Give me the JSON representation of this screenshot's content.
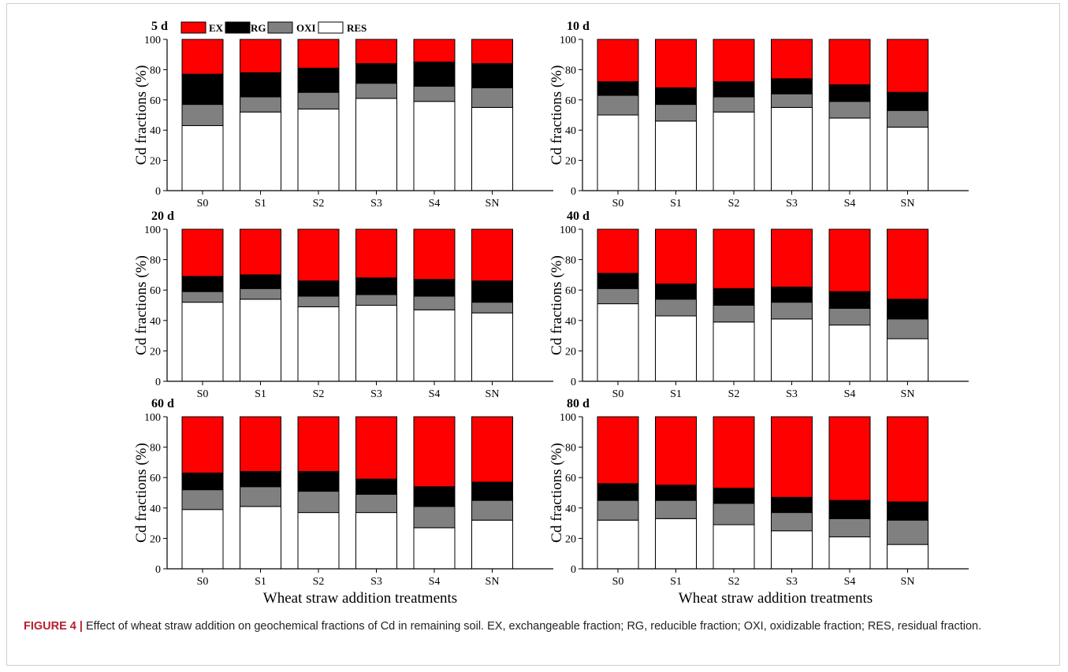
{
  "legend": [
    {
      "key": "EX",
      "color": "#ff0000"
    },
    {
      "key": "RG",
      "color": "#000000"
    },
    {
      "key": "OXI",
      "color": "#808080"
    },
    {
      "key": "RES",
      "color": "#ffffff"
    }
  ],
  "caption": {
    "label": "FIGURE 4 |",
    "text": "Effect of wheat straw addition on geochemical fractions of Cd in remaining soil. EX, exchangeable fraction; RG, reducible fraction; OXI, oxidizable fraction; RES, residual fraction."
  },
  "chart_data": [
    {
      "type": "bar",
      "stacked": true,
      "title": "5 d",
      "xlabel": "",
      "ylabel": "Cd fractions (%)",
      "ylim": [
        0,
        100
      ],
      "yticks": [
        0,
        20,
        40,
        60,
        80,
        100
      ],
      "categories": [
        "S0",
        "S1",
        "S2",
        "S3",
        "S4",
        "SN"
      ],
      "series": [
        {
          "name": "RES",
          "values": [
            43,
            52,
            54,
            61,
            59,
            55
          ]
        },
        {
          "name": "OXI",
          "values": [
            14,
            10,
            11,
            10,
            10,
            13
          ]
        },
        {
          "name": "RG",
          "values": [
            20,
            16,
            16,
            13,
            16,
            16
          ]
        },
        {
          "name": "EX",
          "values": [
            23,
            22,
            19,
            16,
            15,
            16
          ]
        }
      ]
    },
    {
      "type": "bar",
      "stacked": true,
      "title": "10 d",
      "xlabel": "",
      "ylabel": "Cd fractions (%)",
      "ylim": [
        0,
        100
      ],
      "yticks": [
        0,
        20,
        40,
        60,
        80,
        100
      ],
      "categories": [
        "S0",
        "S1",
        "S2",
        "S3",
        "S4",
        "SN"
      ],
      "series": [
        {
          "name": "RES",
          "values": [
            50,
            46,
            52,
            55,
            48,
            42
          ]
        },
        {
          "name": "OXI",
          "values": [
            13,
            11,
            10,
            9,
            11,
            11
          ]
        },
        {
          "name": "RG",
          "values": [
            9,
            11,
            10,
            10,
            11,
            12
          ]
        },
        {
          "name": "EX",
          "values": [
            28,
            32,
            28,
            26,
            30,
            35
          ]
        }
      ]
    },
    {
      "type": "bar",
      "stacked": true,
      "title": "20 d",
      "xlabel": "",
      "ylabel": "Cd fractions (%)",
      "ylim": [
        0,
        100
      ],
      "yticks": [
        0,
        20,
        40,
        60,
        80,
        100
      ],
      "categories": [
        "S0",
        "S1",
        "S2",
        "S3",
        "S4",
        "SN"
      ],
      "series": [
        {
          "name": "RES",
          "values": [
            52,
            54,
            49,
            50,
            47,
            45
          ]
        },
        {
          "name": "OXI",
          "values": [
            7,
            7,
            7,
            7,
            9,
            7
          ]
        },
        {
          "name": "RG",
          "values": [
            10,
            9,
            10,
            11,
            11,
            14
          ]
        },
        {
          "name": "EX",
          "values": [
            31,
            30,
            34,
            32,
            33,
            34
          ]
        }
      ]
    },
    {
      "type": "bar",
      "stacked": true,
      "title": "40 d",
      "xlabel": "",
      "ylabel": "Cd fractions (%)",
      "ylim": [
        0,
        100
      ],
      "yticks": [
        0,
        20,
        40,
        60,
        80,
        100
      ],
      "categories": [
        "S0",
        "S1",
        "S2",
        "S3",
        "S4",
        "SN"
      ],
      "series": [
        {
          "name": "RES",
          "values": [
            51,
            43,
            39,
            41,
            37,
            28
          ]
        },
        {
          "name": "OXI",
          "values": [
            10,
            11,
            11,
            11,
            11,
            13
          ]
        },
        {
          "name": "RG",
          "values": [
            10,
            10,
            11,
            10,
            11,
            13
          ]
        },
        {
          "name": "EX",
          "values": [
            29,
            36,
            39,
            38,
            41,
            46
          ]
        }
      ]
    },
    {
      "type": "bar",
      "stacked": true,
      "title": "60 d",
      "xlabel": "Wheat straw addition treatments",
      "ylabel": "Cd fractions (%)",
      "ylim": [
        0,
        100
      ],
      "yticks": [
        0,
        20,
        40,
        60,
        80,
        100
      ],
      "categories": [
        "S0",
        "S1",
        "S2",
        "S3",
        "S4",
        "SN"
      ],
      "series": [
        {
          "name": "RES",
          "values": [
            39,
            41,
            37,
            37,
            27,
            32
          ]
        },
        {
          "name": "OXI",
          "values": [
            13,
            13,
            14,
            12,
            14,
            13
          ]
        },
        {
          "name": "RG",
          "values": [
            11,
            10,
            13,
            10,
            13,
            12
          ]
        },
        {
          "name": "EX",
          "values": [
            37,
            36,
            36,
            41,
            46,
            43
          ]
        }
      ]
    },
    {
      "type": "bar",
      "stacked": true,
      "title": "80 d",
      "xlabel": "Wheat straw addition treatments",
      "ylabel": "Cd fractions (%)",
      "ylim": [
        0,
        100
      ],
      "yticks": [
        0,
        20,
        40,
        60,
        80,
        100
      ],
      "categories": [
        "S0",
        "S1",
        "S2",
        "S3",
        "S4",
        "SN"
      ],
      "series": [
        {
          "name": "RES",
          "values": [
            32,
            33,
            29,
            25,
            21,
            16
          ]
        },
        {
          "name": "OXI",
          "values": [
            13,
            12,
            14,
            12,
            12,
            16
          ]
        },
        {
          "name": "RG",
          "values": [
            11,
            10,
            10,
            10,
            12,
            12
          ]
        },
        {
          "name": "EX",
          "values": [
            44,
            45,
            47,
            53,
            55,
            56
          ]
        }
      ]
    }
  ]
}
